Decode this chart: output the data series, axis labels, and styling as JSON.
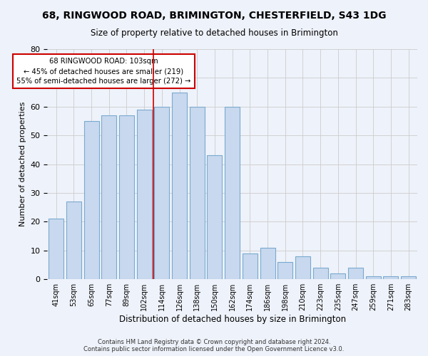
{
  "title": "68, RINGWOOD ROAD, BRIMINGTON, CHESTERFIELD, S43 1DG",
  "subtitle": "Size of property relative to detached houses in Brimington",
  "xlabel": "Distribution of detached houses by size in Brimington",
  "ylabel": "Number of detached properties",
  "categories": [
    "41sqm",
    "53sqm",
    "65sqm",
    "77sqm",
    "89sqm",
    "102sqm",
    "114sqm",
    "126sqm",
    "138sqm",
    "150sqm",
    "162sqm",
    "174sqm",
    "186sqm",
    "198sqm",
    "210sqm",
    "223sqm",
    "235sqm",
    "247sqm",
    "259sqm",
    "271sqm",
    "283sqm"
  ],
  "bar_heights": [
    21,
    27,
    55,
    57,
    57,
    59,
    60,
    65,
    60,
    43,
    60,
    9,
    11,
    6,
    8,
    4,
    2,
    4,
    1,
    1,
    1
  ],
  "bar_color": "#c8d8ee",
  "bar_edge_color": "#7aaad0",
  "vline_color": "#cc0000",
  "annotation_line1": "68 RINGWOOD ROAD: 103sqm",
  "annotation_line2": "← 45% of detached houses are smaller (219)",
  "annotation_line3": "55% of semi-detached houses are larger (272) →",
  "annotation_box_color": "#cc0000",
  "ylim": [
    0,
    80
  ],
  "yticks": [
    0,
    10,
    20,
    30,
    40,
    50,
    60,
    70,
    80
  ],
  "footer": "Contains HM Land Registry data © Crown copyright and database right 2024.\nContains public sector information licensed under the Open Government Licence v3.0.",
  "background_color": "#eef2fa",
  "plot_bg_color": "#eef2fa"
}
